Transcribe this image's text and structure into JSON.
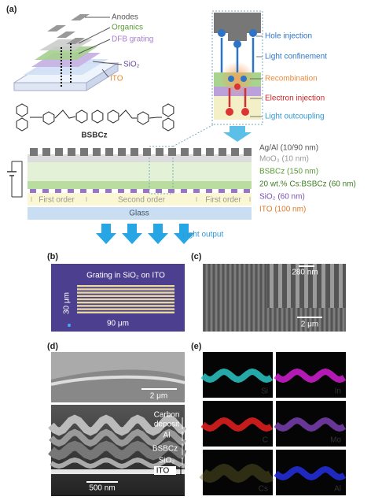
{
  "panel_labels": [
    "(a)",
    "(b)",
    "(c)",
    "(d)",
    "(e)"
  ],
  "device": {
    "anodes": "Anodes",
    "organics": "Organics",
    "dfb_grating": "DFB grating",
    "sio2": "SiO₂",
    "ito": "ITO"
  },
  "molecule": "BSBCz",
  "energy_diagram": {
    "hole_injection": "Hole injection",
    "light_confinement": "Light confinement",
    "recombination": "Recombination",
    "electron_injection": "Electron injection",
    "light_outcoupling": "Light outcoupling"
  },
  "layers": [
    "Ag/Al (10/90 nm)",
    "MoO₃ (10 nm)",
    "BSBCz (150 nm)",
    "20 wt.% Cs:BSBCz (60 nm)",
    "SiO₂ (60 nm)",
    "ITO (100 nm)"
  ],
  "orders": [
    "First order",
    "Second order",
    "First order"
  ],
  "glass": "Glass",
  "light_output": "Light output",
  "b": {
    "caption": "Grating in SiO₂ on ITO",
    "height": "30 μm",
    "width": "90 μm"
  },
  "c": {
    "scale_inset": "280 nm",
    "scale": "2 μm"
  },
  "d": {
    "scale_top": "2 μm",
    "layers": [
      "Carbon",
      "deposit",
      "Al",
      "BSBCz",
      "SiO₂",
      "ITO"
    ],
    "scale_bottom": "500 nm"
  },
  "e": {
    "maps": [
      "Si",
      "In",
      "C",
      "Mo",
      "Cs",
      "Al"
    ]
  }
}
